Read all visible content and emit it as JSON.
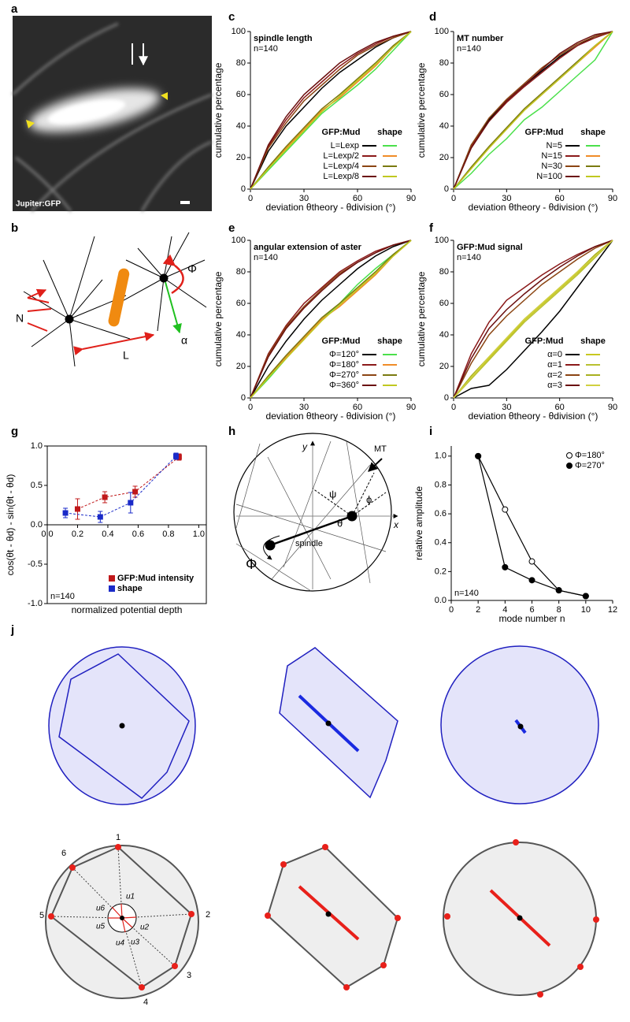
{
  "panel_labels": [
    "a",
    "b",
    "c",
    "d",
    "e",
    "f",
    "g",
    "h",
    "i",
    "j"
  ],
  "image_a": {
    "label": "Jupiter:GFP"
  },
  "diagram_b": {
    "n": "N",
    "phi": "Φ",
    "alpha": "α",
    "l": "L"
  },
  "diagram_h": {
    "y": "y",
    "x": "x",
    "mt": "MT",
    "psi": "ψ",
    "phi_small": "ϕ",
    "theta": "θ",
    "spindle": "spindle",
    "phi": "Φ"
  },
  "diagram_j": {
    "vertex_numbers": [
      "1",
      "2",
      "3",
      "4",
      "5",
      "6"
    ],
    "vectors": [
      "u1",
      "u2",
      "u3",
      "u4",
      "u5",
      "u6"
    ]
  },
  "chart_data": [
    {
      "type": "line",
      "title": "spindle length",
      "annotation": "n=140",
      "x_label": "deviation θtheory - θdivision (°)",
      "y_label": "cumulative percentage",
      "x": [
        0,
        10,
        20,
        30,
        40,
        50,
        60,
        70,
        80,
        90
      ],
      "xlim": [
        0,
        90
      ],
      "xticks": [
        0,
        30,
        60,
        90
      ],
      "ylim": [
        0,
        100
      ],
      "yticks": [
        0,
        20,
        40,
        60,
        80,
        100
      ],
      "legend": "lower right",
      "legend_headers": [
        "GFP:Mud",
        "shape"
      ],
      "series": [
        {
          "name": "L=Lexp",
          "color": "#000000",
          "values": [
            0,
            24,
            40,
            52,
            64,
            74,
            82,
            90,
            96,
            100
          ]
        },
        {
          "name": "L=Lexp/2",
          "color": "#8b1a1a",
          "values": [
            0,
            27,
            44,
            58,
            68,
            78,
            86,
            92,
            97,
            100
          ]
        },
        {
          "name": "L=Lexp/4",
          "color": "#8b4513",
          "values": [
            0,
            26,
            42,
            56,
            66,
            76,
            85,
            91,
            96,
            100
          ]
        },
        {
          "name": "L=Lexp/8",
          "color": "#6b0f0f",
          "values": [
            0,
            28,
            46,
            60,
            70,
            80,
            87,
            93,
            97,
            100
          ]
        },
        {
          "color": "#4be04b",
          "values": [
            0,
            12,
            24,
            36,
            48,
            57,
            66,
            76,
            88,
            100
          ]
        },
        {
          "color": "#f08c28",
          "values": [
            0,
            13,
            26,
            38,
            50,
            58,
            68,
            78,
            90,
            100
          ]
        },
        {
          "color": "#7a7a10",
          "values": [
            0,
            14,
            27,
            39,
            51,
            60,
            70,
            80,
            91,
            100
          ]
        },
        {
          "color": "#c0c820",
          "values": [
            0,
            13,
            25,
            37,
            49,
            59,
            69,
            79,
            90,
            100
          ]
        }
      ]
    },
    {
      "type": "line",
      "title": "MT number",
      "annotation": "n=140",
      "x_label": "deviation θtheory - θdivision (°)",
      "y_label": "cumulative percentage",
      "x": [
        0,
        10,
        20,
        30,
        40,
        50,
        60,
        70,
        80,
        90
      ],
      "xlim": [
        0,
        90
      ],
      "xticks": [
        0,
        30,
        60,
        90
      ],
      "ylim": [
        0,
        100
      ],
      "yticks": [
        0,
        20,
        40,
        60,
        80,
        100
      ],
      "legend": "lower right",
      "legend_headers": [
        "GFP:Mud",
        "shape"
      ],
      "series": [
        {
          "name": "N=5",
          "color": "#000000",
          "values": [
            0,
            28,
            44,
            56,
            66,
            75,
            84,
            91,
            97,
            100
          ]
        },
        {
          "name": "N=15",
          "color": "#8b1a1a",
          "values": [
            0,
            27,
            43,
            55,
            65,
            74,
            83,
            91,
            96,
            100
          ]
        },
        {
          "name": "N=30",
          "color": "#8b4513",
          "values": [
            0,
            28,
            45,
            57,
            67,
            77,
            85,
            92,
            97,
            100
          ]
        },
        {
          "name": "N=100",
          "color": "#6b0f0f",
          "values": [
            0,
            26,
            43,
            56,
            66,
            76,
            86,
            93,
            98,
            100
          ]
        },
        {
          "color": "#4be04b",
          "values": [
            0,
            10,
            22,
            32,
            44,
            52,
            62,
            72,
            82,
            100
          ]
        },
        {
          "color": "#f08c28",
          "values": [
            0,
            13,
            26,
            38,
            50,
            60,
            70,
            80,
            90,
            100
          ]
        },
        {
          "color": "#7a7a10",
          "values": [
            0,
            14,
            27,
            39,
            51,
            61,
            71,
            81,
            91,
            100
          ]
        },
        {
          "color": "#c0c820",
          "values": [
            0,
            13,
            26,
            38,
            50,
            60,
            70,
            80,
            91,
            100
          ]
        }
      ]
    },
    {
      "type": "line",
      "title": "angular extension of aster",
      "annotation": "n=140",
      "x_label": "deviation θtheory - θdivision (°)",
      "y_label": "cumulative percentage",
      "x": [
        0,
        10,
        20,
        30,
        40,
        50,
        60,
        70,
        80,
        90
      ],
      "xlim": [
        0,
        90
      ],
      "xticks": [
        0,
        30,
        60,
        90
      ],
      "ylim": [
        0,
        100
      ],
      "yticks": [
        0,
        20,
        40,
        60,
        80,
        100
      ],
      "legend": "lower right",
      "legend_headers": [
        "GFP:Mud",
        "shape"
      ],
      "series": [
        {
          "name": "Φ=120°",
          "color": "#000000",
          "values": [
            0,
            20,
            36,
            50,
            62,
            72,
            82,
            90,
            96,
            100
          ]
        },
        {
          "name": "Φ=180°",
          "color": "#8b1a1a",
          "values": [
            0,
            28,
            46,
            60,
            70,
            80,
            87,
            93,
            97,
            100
          ]
        },
        {
          "name": "Φ=270°",
          "color": "#8b4513",
          "values": [
            0,
            27,
            45,
            58,
            69,
            79,
            86,
            92,
            97,
            100
          ]
        },
        {
          "name": "Φ=360°",
          "color": "#6b0f0f",
          "values": [
            0,
            26,
            44,
            57,
            68,
            78,
            86,
            92,
            97,
            100
          ]
        },
        {
          "color": "#4be04b",
          "values": [
            0,
            12,
            25,
            38,
            50,
            60,
            72,
            82,
            91,
            100
          ]
        },
        {
          "color": "#f08c28",
          "values": [
            0,
            13,
            26,
            38,
            50,
            58,
            68,
            78,
            90,
            100
          ]
        },
        {
          "color": "#7a7a10",
          "values": [
            0,
            14,
            27,
            39,
            51,
            60,
            70,
            80,
            91,
            100
          ]
        },
        {
          "color": "#c0c820",
          "values": [
            0,
            13,
            25,
            37,
            49,
            59,
            69,
            79,
            90,
            100
          ]
        }
      ]
    },
    {
      "type": "line",
      "title": "GFP:Mud signal",
      "annotation": "n=140",
      "x_label": "deviation θtheory - θdivision (°)",
      "y_label": "cumulative percentage",
      "x": [
        0,
        10,
        20,
        30,
        40,
        50,
        60,
        70,
        80,
        90
      ],
      "xlim": [
        0,
        90
      ],
      "xticks": [
        0,
        30,
        60,
        90
      ],
      "ylim": [
        0,
        100
      ],
      "yticks": [
        0,
        20,
        40,
        60,
        80,
        100
      ],
      "legend": "lower right",
      "legend_headers": [
        "GFP:Mud",
        "shape"
      ],
      "series": [
        {
          "name": "α=0",
          "color": "#000000",
          "values": [
            0,
            6,
            8,
            18,
            30,
            42,
            55,
            70,
            85,
            100
          ]
        },
        {
          "name": "α=1",
          "color": "#8b1a1a",
          "values": [
            0,
            28,
            48,
            62,
            70,
            78,
            85,
            91,
            96,
            100
          ]
        },
        {
          "name": "α=2",
          "color": "#8b4513",
          "values": [
            0,
            22,
            40,
            52,
            62,
            72,
            80,
            88,
            95,
            100
          ]
        },
        {
          "name": "α=3",
          "color": "#6b0f0f",
          "values": [
            0,
            25,
            44,
            56,
            66,
            75,
            83,
            90,
            96,
            100
          ]
        },
        {
          "color": "#c8c820",
          "values": [
            0,
            13,
            25,
            37,
            49,
            59,
            69,
            79,
            90,
            100
          ]
        },
        {
          "color": "#b8c030",
          "values": [
            0,
            12,
            24,
            36,
            48,
            58,
            68,
            78,
            89,
            100
          ]
        },
        {
          "color": "#a8b020",
          "values": [
            0,
            14,
            26,
            38,
            50,
            60,
            70,
            80,
            91,
            100
          ]
        },
        {
          "color": "#d0d040",
          "values": [
            0,
            13,
            26,
            38,
            50,
            60,
            70,
            80,
            90,
            100
          ]
        }
      ]
    },
    {
      "type": "scatter",
      "annotation": "n=140",
      "x_label": "normalized potential depth",
      "y_label": "cos(θt - θd) - sin(θt - θd)",
      "xlim": [
        0,
        1.05
      ],
      "xticks": [
        {
          "value": 0,
          "label": "0.0"
        },
        {
          "value": 0.2,
          "label": "0.2"
        },
        {
          "value": 0.4,
          "label": "0.4"
        },
        {
          "value": 0.6,
          "label": "0.6"
        },
        {
          "value": 0.8,
          "label": "0.8"
        },
        {
          "value": 1,
          "label": "1.0"
        }
      ],
      "ylim": [
        -1,
        1
      ],
      "yticks": [
        {
          "value": -1,
          "label": "-1.0"
        },
        {
          "value": -0.5,
          "label": "-0.5"
        },
        {
          "value": 0,
          "label": "0.0"
        },
        {
          "value": 0.5,
          "label": "0.5"
        },
        {
          "value": 1,
          "label": "1.0"
        }
      ],
      "legend": "lower right",
      "series": [
        {
          "name": "GFP:Mud intensity",
          "color": "#c0181a",
          "x": [
            0.2,
            0.38,
            0.58,
            0.87
          ],
          "values": [
            0.2,
            0.35,
            0.42,
            0.86
          ],
          "errors": [
            0.13,
            0.07,
            0.07,
            0.04
          ]
        },
        {
          "name": "shape",
          "color": "#1a2ac8",
          "x": [
            0.12,
            0.35,
            0.55,
            0.85
          ],
          "values": [
            0.15,
            0.1,
            0.28,
            0.87
          ],
          "errors": [
            0.06,
            0.07,
            0.13,
            0.04
          ]
        }
      ]
    },
    {
      "type": "line",
      "annotation": "n=140",
      "x_label": "mode number n",
      "y_label": "relative amplitude",
      "xlim": [
        0,
        12
      ],
      "xticks": [
        0,
        2,
        4,
        6,
        8,
        10,
        12
      ],
      "ylim": [
        0,
        1.07
      ],
      "yticks": [
        {
          "value": 0,
          "label": "0.0"
        },
        {
          "value": 0.2,
          "label": "0.2"
        },
        {
          "value": 0.4,
          "label": "0.4"
        },
        {
          "value": 0.6,
          "label": "0.6"
        },
        {
          "value": 0.8,
          "label": "0.8"
        },
        {
          "value": 1,
          "label": "1.0"
        }
      ],
      "legend": "upper right",
      "series": [
        {
          "name": "Φ=180°",
          "color": "#000000",
          "marker": "open",
          "x": [
            2,
            4,
            6,
            8,
            10
          ],
          "values": [
            1.0,
            0.63,
            0.27,
            0.07,
            0.03
          ]
        },
        {
          "name": "Φ=270°",
          "color": "#000000",
          "marker": "filled",
          "x": [
            2,
            4,
            6,
            8,
            10
          ],
          "values": [
            1.0,
            0.23,
            0.14,
            0.07,
            0.03
          ]
        }
      ]
    }
  ]
}
